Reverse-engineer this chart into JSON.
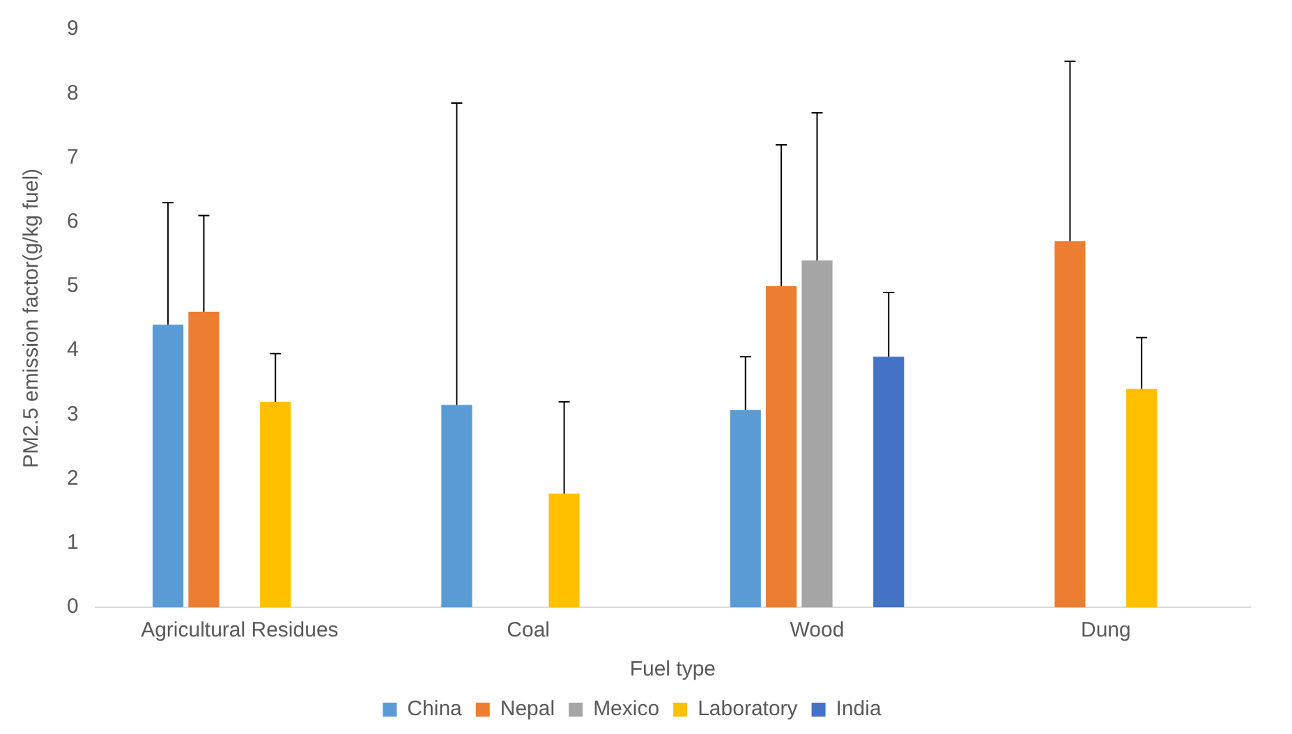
{
  "chart_data": {
    "type": "bar",
    "xlabel": "Fuel type",
    "ylabel": "PM2.5 emission factor(g/kg fuel)",
    "categories": [
      "Agricultural Residues",
      "Coal",
      "Wood",
      "Dung"
    ],
    "series": [
      {
        "name": "China",
        "color": "#5b9bd5",
        "values": [
          4.4,
          3.15,
          3.07,
          null
        ],
        "errors": [
          [
            4.4,
            6.3
          ],
          [
            3.15,
            7.85
          ],
          [
            3.07,
            3.9
          ],
          null
        ]
      },
      {
        "name": "Nepal",
        "color": "#ed7d31",
        "values": [
          4.6,
          null,
          5.0,
          5.7
        ],
        "errors": [
          [
            4.6,
            6.1
          ],
          null,
          [
            5.0,
            7.2
          ],
          [
            5.7,
            8.5
          ]
        ]
      },
      {
        "name": "Mexico",
        "color": "#a5a5a5",
        "values": [
          null,
          null,
          5.4,
          null
        ],
        "errors": [
          null,
          null,
          [
            5.4,
            7.7
          ],
          null
        ]
      },
      {
        "name": "Laboratory",
        "color": "#ffc000",
        "values": [
          3.2,
          1.77,
          null,
          3.4
        ],
        "errors": [
          [
            3.2,
            3.95
          ],
          [
            1.77,
            3.2
          ],
          null,
          [
            3.4,
            4.2
          ]
        ]
      },
      {
        "name": "India",
        "color": "#4472c4",
        "values": [
          null,
          null,
          3.9,
          null
        ],
        "errors": [
          null,
          null,
          [
            3.9,
            4.9
          ],
          null
        ]
      }
    ],
    "ylim": [
      0,
      9
    ],
    "yticks": [
      0,
      1,
      2,
      3,
      4,
      5,
      6,
      7,
      8,
      9
    ],
    "grid": false,
    "legend": "bottom"
  }
}
